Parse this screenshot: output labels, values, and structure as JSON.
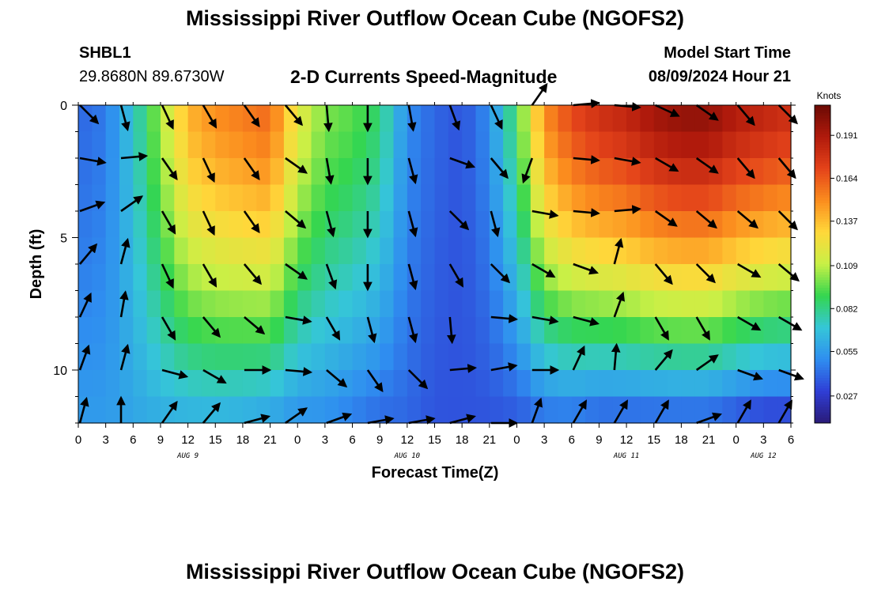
{
  "header": {
    "title": "Mississippi River Outflow Ocean Cube (NGOFS2)",
    "station_id": "SHBL1",
    "station_coords": "29.8680N  89.6730W",
    "subtitle": "2-D Currents Speed-Magnitude",
    "model_start_label": "Model Start Time",
    "model_start_value": "08/09/2024 Hour 21"
  },
  "footer": {
    "title": "Mississippi River Outflow Ocean Cube (NGOFS2)"
  },
  "colors": {
    "colormap": [
      "#2a1a78",
      "#2f3fd6",
      "#2f8ef0",
      "#35c6d8",
      "#34d64f",
      "#c8f046",
      "#ffd83a",
      "#fb8c1e",
      "#e4431a",
      "#b01a0c",
      "#6b0a04"
    ],
    "arrow": "#000000",
    "axis": "#000000"
  },
  "chart_data": {
    "type": "heatmap",
    "title": "2-D Currents Speed-Magnitude",
    "xlabel": "Forecast Time(Z)",
    "ylabel": "Depth (ft)",
    "x_ticks": [
      "0",
      "3",
      "6",
      "9",
      "12",
      "15",
      "18",
      "21",
      "0",
      "3",
      "6",
      "9",
      "12",
      "15",
      "18",
      "21",
      "0",
      "3",
      "6",
      "9",
      "12",
      "15",
      "18",
      "21",
      "0",
      "3",
      "6"
    ],
    "x_range_hours": [
      0,
      78
    ],
    "day_labels": [
      {
        "label": "AUG 9",
        "hour": 12
      },
      {
        "label": "AUG 10",
        "hour": 36
      },
      {
        "label": "AUG 11",
        "hour": 60
      },
      {
        "label": "AUG 12",
        "hour": 75
      }
    ],
    "y_ticks": [
      0,
      5,
      10
    ],
    "y_range_ft": [
      0,
      12
    ],
    "colorbar": {
      "label": "Knots",
      "ticks": [
        "0.191",
        "0.164",
        "0.137",
        "0.109",
        "0.082",
        "0.055",
        "0.027"
      ],
      "tick_values": [
        0.191,
        0.164,
        0.137,
        0.109,
        0.082,
        0.055,
        0.027
      ],
      "range": [
        0.01,
        0.21
      ]
    },
    "speed_profile_hours": [
      0,
      3,
      6,
      9,
      12,
      15,
      18,
      21,
      24,
      27,
      30,
      33,
      36,
      39,
      42,
      45,
      48,
      51,
      54,
      57,
      60,
      63,
      66,
      69,
      72,
      75,
      78
    ],
    "surface_speed": [
      0.04,
      0.045,
      0.07,
      0.105,
      0.14,
      0.15,
      0.155,
      0.16,
      0.12,
      0.1,
      0.095,
      0.085,
      0.05,
      0.04,
      0.035,
      0.05,
      0.09,
      0.15,
      0.17,
      0.18,
      0.185,
      0.195,
      0.2,
      0.2,
      0.19,
      0.185,
      0.18
    ],
    "bottom_speed": [
      0.055,
      0.055,
      0.058,
      0.06,
      0.06,
      0.06,
      0.058,
      0.055,
      0.05,
      0.05,
      0.045,
      0.04,
      0.04,
      0.035,
      0.035,
      0.035,
      0.035,
      0.04,
      0.04,
      0.035,
      0.035,
      0.035,
      0.035,
      0.035,
      0.03,
      0.025,
      0.025
    ],
    "vector_hours": [
      0,
      4.5,
      9,
      13.5,
      18,
      22.5,
      27,
      31.5,
      36,
      40.5,
      45,
      49.5,
      54,
      58.5,
      63,
      67.5,
      72,
      76.5
    ],
    "vector_depths_ft": [
      0,
      2,
      4,
      6,
      8,
      10,
      12
    ],
    "vector_directions_deg": [
      [
        135,
        165,
        155,
        150,
        145,
        140,
        175,
        180,
        170,
        160,
        155,
        35,
        85,
        95,
        115,
        125,
        140,
        135
      ],
      [
        100,
        85,
        145,
        155,
        145,
        125,
        170,
        180,
        165,
        110,
        140,
        200,
        95,
        100,
        120,
        125,
        140,
        140
      ],
      [
        70,
        55,
        150,
        155,
        145,
        130,
        165,
        180,
        165,
        135,
        165,
        100,
        95,
        85,
        125,
        130,
        130,
        135
      ],
      [
        40,
        15,
        155,
        150,
        140,
        125,
        160,
        180,
        165,
        150,
        135,
        120,
        110,
        15,
        140,
        135,
        120,
        130
      ],
      [
        25,
        10,
        150,
        140,
        130,
        100,
        150,
        165,
        165,
        175,
        95,
        100,
        105,
        20,
        150,
        150,
        120,
        120
      ],
      [
        20,
        15,
        105,
        120,
        90,
        95,
        130,
        145,
        135,
        85,
        80,
        90,
        25,
        5,
        40,
        55,
        110,
        110
      ],
      [
        15,
        0,
        35,
        40,
        75,
        55,
        70,
        80,
        80,
        75,
        90,
        20,
        30,
        30,
        30,
        70,
        30,
        30
      ]
    ]
  }
}
